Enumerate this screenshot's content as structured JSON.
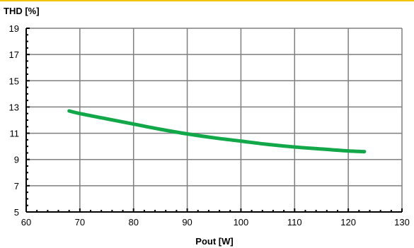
{
  "chart_data": {
    "type": "line",
    "title": "",
    "ylabel": "THD [%]",
    "xlabel": "Pout [W]",
    "xlim": [
      60,
      130
    ],
    "ylim": [
      5,
      19
    ],
    "x_ticks": [
      60,
      70,
      80,
      90,
      100,
      110,
      120,
      130
    ],
    "y_ticks": [
      5,
      7,
      9,
      11,
      13,
      15,
      17,
      19
    ],
    "grid": true,
    "legend": "none",
    "series": [
      {
        "color": "#12a84a",
        "x": [
          68,
          70,
          75,
          80,
          85,
          90,
          95,
          100,
          105,
          110,
          115,
          120,
          123
        ],
        "y": [
          12.7,
          12.5,
          12.1,
          11.7,
          11.3,
          10.95,
          10.65,
          10.4,
          10.15,
          9.95,
          9.8,
          9.65,
          9.6
        ]
      }
    ],
    "colors": {
      "grid": "#7f7f7f",
      "frame": "#000000",
      "top_rule": "#f2c200"
    }
  }
}
